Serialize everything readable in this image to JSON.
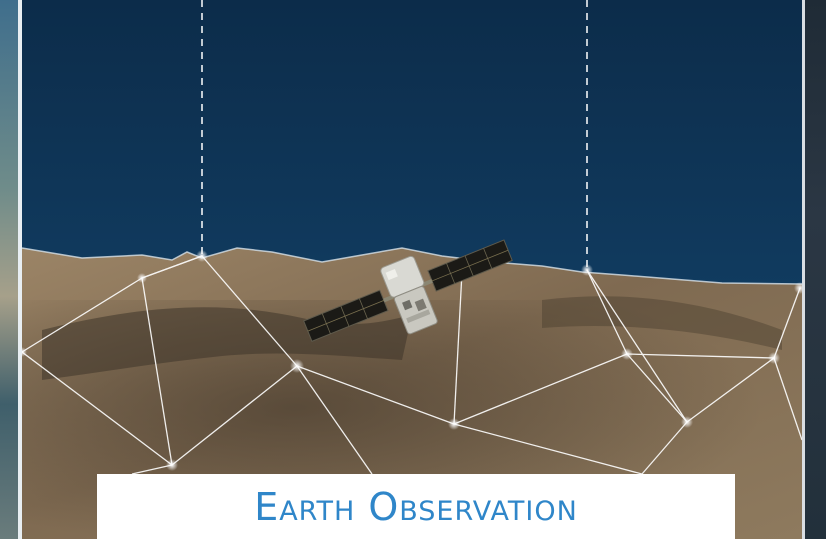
{
  "caption": {
    "text": "Earth Observation"
  },
  "colors": {
    "ocean": "#0f3556",
    "land": "#8a7356",
    "network_lines": "#ffffff",
    "caption_text": "#2f86c9",
    "caption_background": "#ffffff"
  },
  "scene": {
    "subject": "satellite over coastline",
    "icons": [
      "satellite-icon",
      "network-node-icon"
    ]
  }
}
